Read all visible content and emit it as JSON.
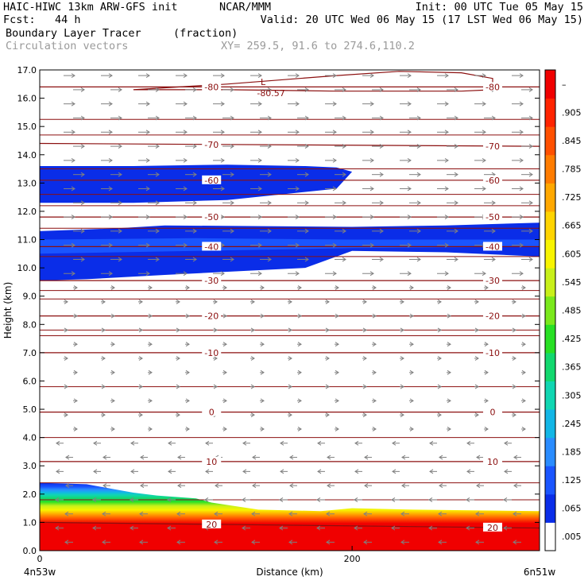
{
  "header": {
    "left1": "HAIC-HIWC 13km ARW-GFS init",
    "center1": "NCAR/MMM",
    "right1": "Init: 00 UTC Tue 05 May 15",
    "left2": "Fcst:   44 h",
    "right2": "Valid: 20 UTC Wed 06 May 15 (17 LST Wed 06 May 15)",
    "field1": "Boundary Layer Tracer",
    "field1_units": "(fraction)",
    "field2": "Circulation vectors",
    "xy_range": "XY= 259.5, 91.6 to 274.6,110.2"
  },
  "chart_data": {
    "type": "cross-section",
    "xlabel": "Distance (km)",
    "ylabel": "Height (km)",
    "xlim": [
      0,
      320
    ],
    "ylim": [
      0.0,
      17.0
    ],
    "x_ticks": [
      {
        "v": 0,
        "label": "0"
      },
      {
        "v": 200,
        "label": "200"
      }
    ],
    "x_end_labels": {
      "left": "4n53w",
      "right": "6n51w"
    },
    "y_ticks": [
      "0.0",
      "1.0",
      "2.0",
      "3.0",
      "4.0",
      "5.0",
      "6.0",
      "7.0",
      "8.0",
      "9.0",
      "10.0",
      "11.0",
      "12.0",
      "13.0",
      "14.0",
      "15.0",
      "16.0",
      "17.0"
    ],
    "colorbar": {
      "labels": [
        ".005",
        ".065",
        ".125",
        ".185",
        ".245",
        ".305",
        ".365",
        ".425",
        ".485",
        ".545",
        ".605",
        ".665",
        ".725",
        ".785",
        ".845",
        ".905",
        "–"
      ],
      "colors": [
        "#ffffff",
        "#0a2de8",
        "#1a55ff",
        "#2a8cff",
        "#12b6e6",
        "#10d6b2",
        "#12d86e",
        "#28e024",
        "#7ae81c",
        "#c8f01a",
        "#f8f400",
        "#ffd400",
        "#ffa800",
        "#ff7c00",
        "#ff5000",
        "#ff2400",
        "#f00000"
      ]
    },
    "temperature_contours": [
      {
        "label": "-80",
        "x": [
          0,
          320
        ],
        "y": [
          16.4,
          16.4
        ]
      },
      {
        "label": "-70",
        "x": [
          0,
          320
        ],
        "y": [
          14.4,
          14.3
        ]
      },
      {
        "label": "-60",
        "x": [
          0,
          320
        ],
        "y": [
          13.1,
          13.1
        ]
      },
      {
        "label": "-50",
        "x": [
          0,
          320
        ],
        "y": [
          11.8,
          11.8
        ]
      },
      {
        "label": "-40",
        "x": [
          0,
          320
        ],
        "y": [
          10.75,
          10.75
        ]
      },
      {
        "label": "-30",
        "x": [
          0,
          320
        ],
        "y": [
          9.55,
          9.55
        ]
      },
      {
        "label": "-20",
        "x": [
          0,
          320
        ],
        "y": [
          8.3,
          8.3
        ]
      },
      {
        "label": "-10",
        "x": [
          0,
          320
        ],
        "y": [
          7.0,
          7.0
        ]
      },
      {
        "label": "0",
        "x": [
          0,
          320
        ],
        "y": [
          4.9,
          4.9
        ]
      },
      {
        "label": "10",
        "x": [
          0,
          320
        ],
        "y": [
          3.15,
          3.15
        ]
      },
      {
        "label": "20",
        "x": [
          0,
          320
        ],
        "y": [
          1.0,
          0.8
        ]
      }
    ],
    "unlabeled_contours": [
      17.0,
      15.25,
      14.7,
      13.5,
      12.6,
      12.2,
      11.4,
      10.4,
      9.2,
      8.9,
      7.8,
      7.6,
      5.8,
      4.0,
      2.4,
      1.8
    ],
    "minimum_marker": {
      "symbol": "L",
      "value": "-80.57",
      "x": 143,
      "y": 16.3
    },
    "minimum_contour": {
      "x": [
        60,
        120,
        190,
        230,
        270,
        290,
        290,
        270,
        190,
        120,
        60
      ],
      "y": [
        16.3,
        16.5,
        16.8,
        16.95,
        16.9,
        16.7,
        16.3,
        16.25,
        16.25,
        16.3,
        16.3
      ]
    },
    "tracer_layers": [
      {
        "name": "upper-band",
        "value": 0.065,
        "x": [
          0,
          60,
          120,
          170,
          190,
          200,
          190,
          120,
          60,
          0
        ],
        "y": [
          13.6,
          13.6,
          13.65,
          13.6,
          13.55,
          13.4,
          12.8,
          12.4,
          12.3,
          12.3
        ]
      },
      {
        "name": "mid-band-outer",
        "value": 0.065,
        "x": [
          0,
          50,
          80,
          200,
          260,
          320,
          320,
          260,
          200,
          170,
          80,
          30,
          0
        ],
        "y": [
          11.3,
          11.4,
          11.5,
          11.45,
          11.5,
          11.6,
          10.4,
          10.55,
          10.6,
          10.0,
          9.75,
          9.6,
          9.55
        ]
      },
      {
        "name": "mid-band-inner",
        "value": 0.125,
        "x": [
          0,
          100,
          200,
          320,
          320,
          200,
          100,
          0
        ],
        "y": [
          11.0,
          11.05,
          11.0,
          11.0,
          10.75,
          10.7,
          10.6,
          10.5
        ]
      }
    ],
    "boundary_layer_top": {
      "x": [
        0,
        30,
        45,
        60,
        75,
        100,
        110,
        140,
        180,
        200,
        240,
        320
      ],
      "y": [
        2.4,
        2.35,
        2.2,
        2.05,
        1.95,
        1.85,
        1.7,
        1.45,
        1.4,
        1.5,
        1.45,
        1.4
      ]
    },
    "vectors": "circulation vectors (mostly easterly flow aloft, westward near surface)"
  }
}
